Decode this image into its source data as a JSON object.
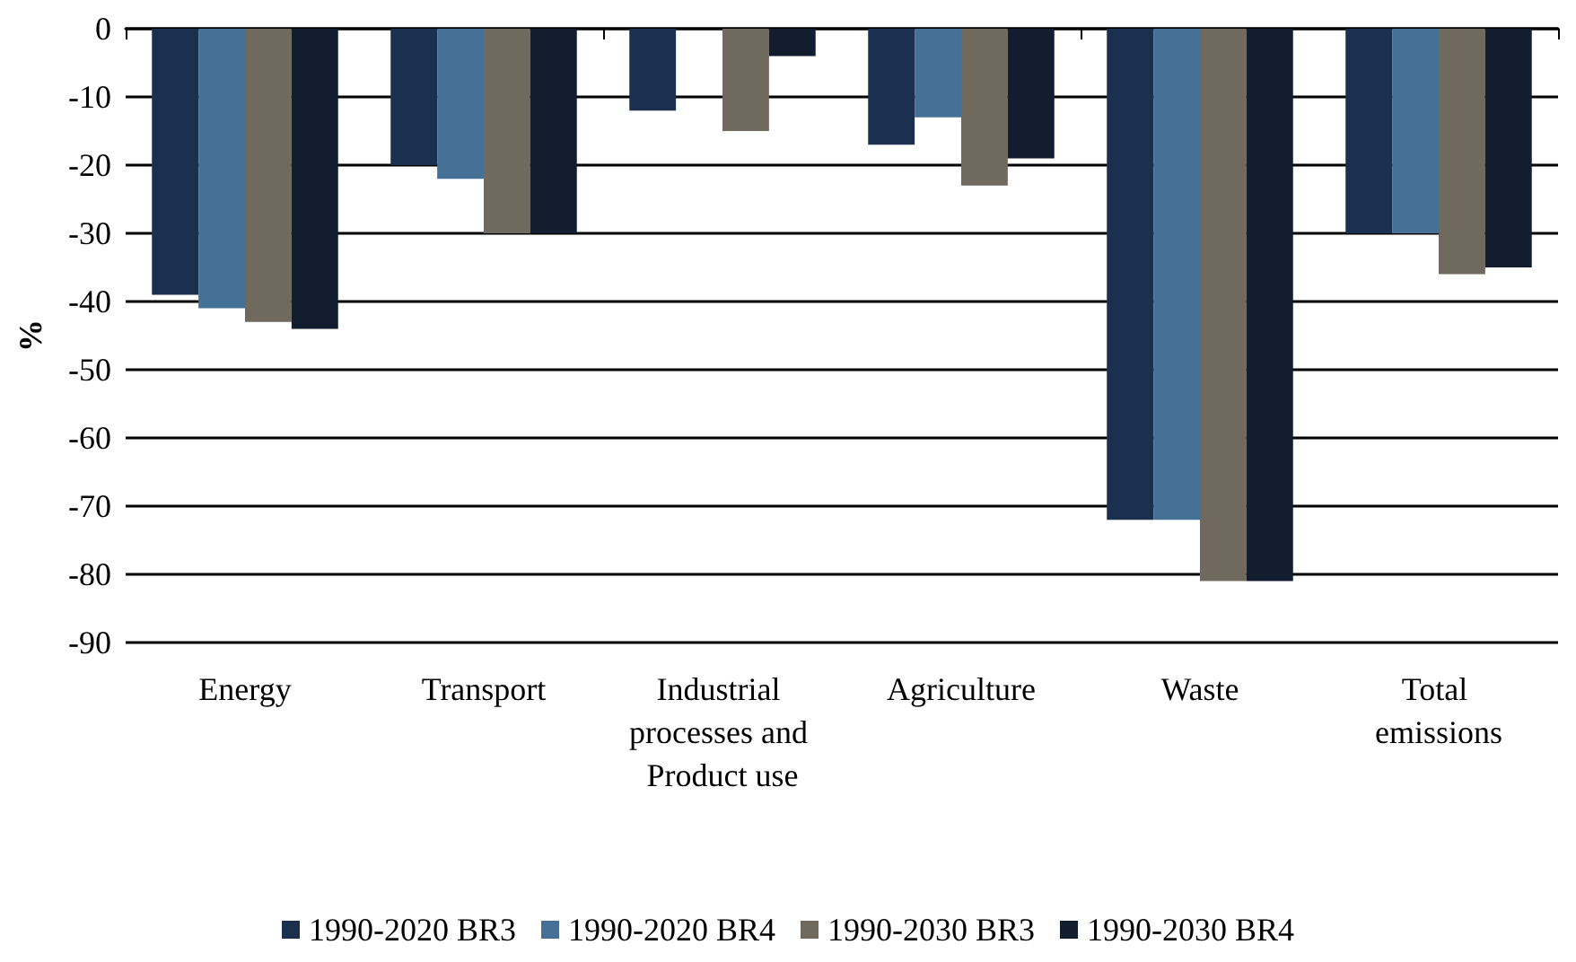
{
  "chart_data": {
    "type": "bar",
    "ylabel": "%",
    "categories": [
      "Energy",
      "Transport",
      "Industrial processes and Product use",
      "Agriculture",
      "Waste",
      "Total emissions"
    ],
    "series": [
      {
        "name": "1990-2020 BR3",
        "color": "#1b2f4e",
        "values": [
          -39,
          -20,
          -12,
          -17,
          -72,
          -30
        ]
      },
      {
        "name": "1990-2020 BR4",
        "color": "#467196",
        "values": [
          -41,
          -22,
          null,
          -13,
          -72,
          -30
        ]
      },
      {
        "name": "1990-2030 BR3",
        "color": "#706a5e",
        "values": [
          -43,
          -30,
          -15,
          -23,
          -81,
          -36
        ]
      },
      {
        "name": "1990-2030 BR4",
        "color": "#121d30",
        "values": [
          -44,
          -30,
          -4,
          -19,
          -81,
          -35
        ]
      }
    ],
    "ylim": [
      -90,
      0
    ],
    "yticks": [
      -90,
      -80,
      -70,
      -60,
      -50,
      -40,
      -30,
      -20,
      -10,
      0
    ],
    "grid": "y",
    "legend": "bottom"
  }
}
